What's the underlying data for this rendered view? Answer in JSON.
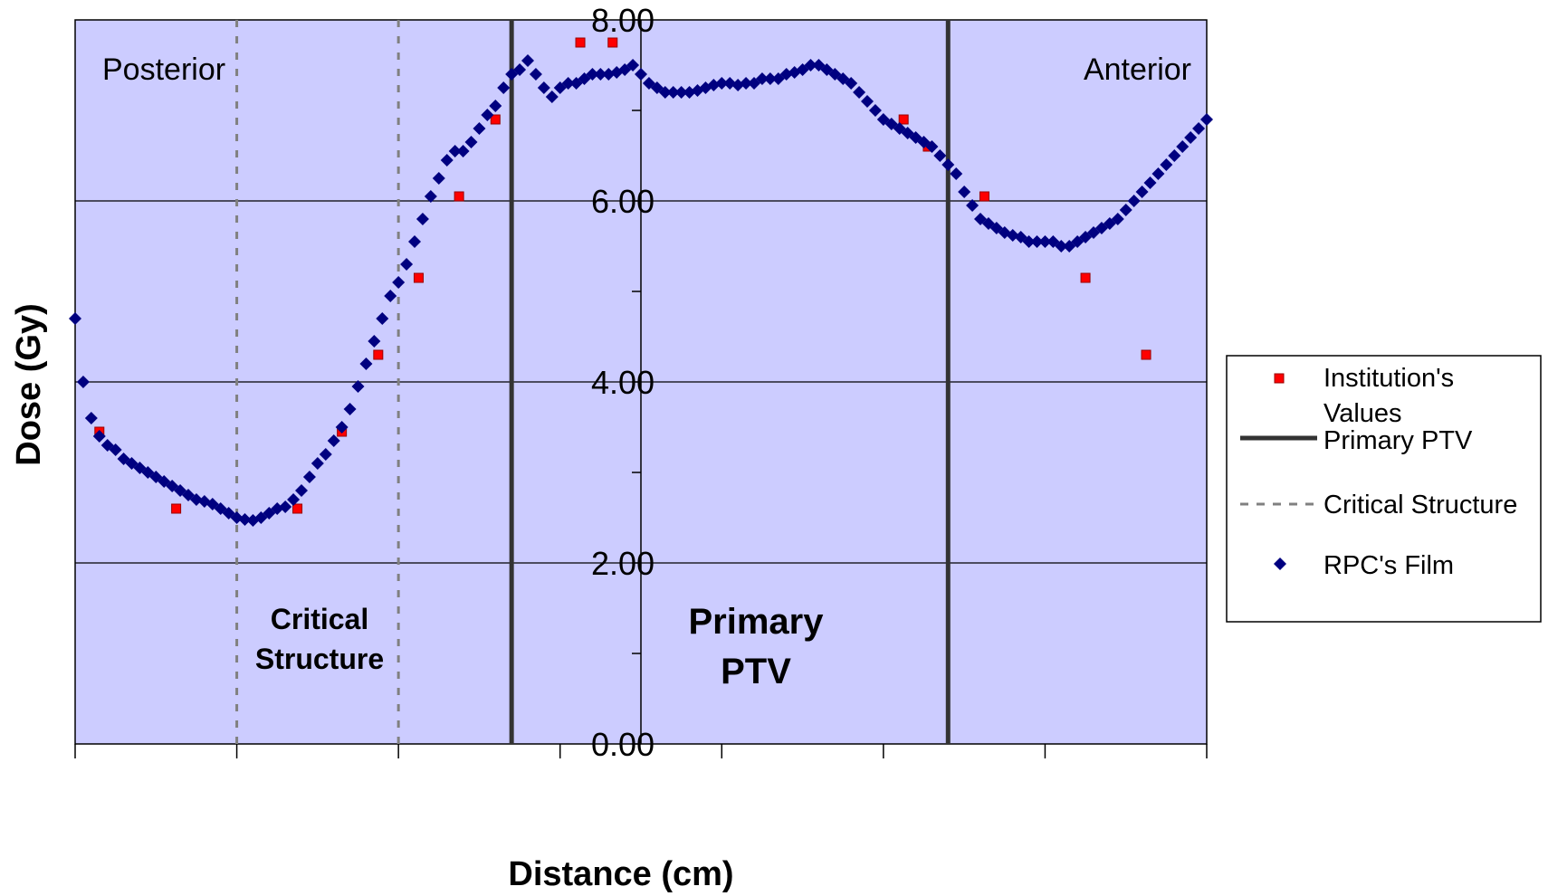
{
  "chart_data": {
    "type": "scatter",
    "title": "",
    "xlabel": "Distance (cm)",
    "ylabel": "Dose (Gy)",
    "ylim": [
      0,
      8
    ],
    "xlim": [
      0,
      14
    ],
    "y_ticks": [
      "0.00",
      "2.00",
      "4.00",
      "6.00",
      "8.00"
    ],
    "grid": "horizontal major gridlines",
    "plot_background": "#CCCCFF",
    "legend_position": "right",
    "region_labels": {
      "left": "Posterior",
      "right": "Anterior"
    },
    "annotations": {
      "critical_line1": "Critical",
      "critical_line2": "Structure",
      "ptv_line1": "Primary",
      "ptv_line2": "PTV"
    },
    "vertical_lines": [
      {
        "series": "Critical Structure",
        "x": [
          2.0,
          4.0
        ],
        "style": "dashed",
        "color": "#808080"
      },
      {
        "series": "Primary PTV",
        "x": [
          5.4,
          10.8
        ],
        "style": "solid",
        "color": "#333333"
      }
    ],
    "series": [
      {
        "name": "Institution's Values",
        "marker": "square",
        "color": "#FF0000",
        "x": [
          0.3,
          1.25,
          2.75,
          3.3,
          3.75,
          4.25,
          4.75,
          5.2,
          6.25,
          6.65,
          10.25,
          10.55,
          11.25,
          12.5,
          13.25
        ],
        "y": [
          3.45,
          2.6,
          2.6,
          3.45,
          4.3,
          5.15,
          6.05,
          6.9,
          7.75,
          7.75,
          6.9,
          6.6,
          6.05,
          5.15,
          4.3
        ]
      },
      {
        "name": "RPC's Film",
        "marker": "diamond",
        "color": "#000080",
        "x": [
          0.0,
          0.1,
          0.2,
          0.3,
          0.4,
          0.5,
          0.6,
          0.7,
          0.8,
          0.9,
          1.0,
          1.1,
          1.2,
          1.3,
          1.4,
          1.5,
          1.6,
          1.7,
          1.8,
          1.9,
          2.0,
          2.1,
          2.2,
          2.3,
          2.4,
          2.5,
          2.6,
          2.7,
          2.8,
          2.9,
          3.0,
          3.1,
          3.2,
          3.3,
          3.4,
          3.5,
          3.6,
          3.7,
          3.8,
          3.9,
          4.0,
          4.1,
          4.2,
          4.3,
          4.4,
          4.5,
          4.6,
          4.7,
          4.8,
          4.9,
          5.0,
          5.1,
          5.2,
          5.3,
          5.4,
          5.5,
          5.6,
          5.7,
          5.8,
          5.9,
          6.0,
          6.1,
          6.2,
          6.3,
          6.4,
          6.5,
          6.6,
          6.7,
          6.8,
          6.9,
          7.0,
          7.1,
          7.2,
          7.3,
          7.4,
          7.5,
          7.6,
          7.7,
          7.8,
          7.9,
          8.0,
          8.1,
          8.2,
          8.3,
          8.4,
          8.5,
          8.6,
          8.7,
          8.8,
          8.9,
          9.0,
          9.1,
          9.2,
          9.3,
          9.4,
          9.5,
          9.6,
          9.7,
          9.8,
          9.9,
          10.0,
          10.1,
          10.2,
          10.3,
          10.4,
          10.5,
          10.6,
          10.7,
          10.8,
          10.9,
          11.0,
          11.1,
          11.2,
          11.3,
          11.4,
          11.5,
          11.6,
          11.7,
          11.8,
          11.9,
          12.0,
          12.1,
          12.2,
          12.3,
          12.4,
          12.5,
          12.6,
          12.7,
          12.8,
          12.9,
          13.0,
          13.1,
          13.2,
          13.3,
          13.4,
          13.5,
          13.6,
          13.7,
          13.8,
          13.9,
          14.0
        ],
        "y": [
          4.7,
          4.0,
          3.6,
          3.4,
          3.3,
          3.25,
          3.15,
          3.1,
          3.05,
          3.0,
          2.95,
          2.9,
          2.85,
          2.8,
          2.75,
          2.7,
          2.68,
          2.65,
          2.6,
          2.55,
          2.5,
          2.48,
          2.47,
          2.5,
          2.55,
          2.6,
          2.62,
          2.7,
          2.8,
          2.95,
          3.1,
          3.2,
          3.35,
          3.5,
          3.7,
          3.95,
          4.2,
          4.45,
          4.7,
          4.95,
          5.1,
          5.3,
          5.55,
          5.8,
          6.05,
          6.25,
          6.45,
          6.55,
          6.55,
          6.65,
          6.8,
          6.95,
          7.05,
          7.25,
          7.4,
          7.45,
          7.55,
          7.4,
          7.25,
          7.15,
          7.25,
          7.3,
          7.3,
          7.35,
          7.4,
          7.4,
          7.4,
          7.42,
          7.45,
          7.5,
          7.4,
          7.3,
          7.25,
          7.2,
          7.2,
          7.2,
          7.2,
          7.22,
          7.25,
          7.28,
          7.3,
          7.3,
          7.28,
          7.3,
          7.3,
          7.35,
          7.35,
          7.35,
          7.4,
          7.42,
          7.45,
          7.5,
          7.5,
          7.45,
          7.4,
          7.35,
          7.3,
          7.2,
          7.1,
          7.0,
          6.9,
          6.85,
          6.8,
          6.75,
          6.7,
          6.65,
          6.6,
          6.5,
          6.4,
          6.3,
          6.1,
          5.95,
          5.8,
          5.75,
          5.7,
          5.65,
          5.62,
          5.6,
          5.55,
          5.55,
          5.55,
          5.55,
          5.5,
          5.5,
          5.55,
          5.6,
          5.65,
          5.7,
          5.75,
          5.8,
          5.9,
          6.0,
          6.1,
          6.2,
          6.3,
          6.4,
          6.5,
          6.6,
          6.7,
          6.8,
          6.9
        ]
      }
    ],
    "legend": [
      {
        "label_line1": "Institution's",
        "label_line2": "Values",
        "series": "Institution's Values"
      },
      {
        "label": "Primary PTV",
        "series": "Primary PTV"
      },
      {
        "label": "Critical Structure",
        "series": "Critical Structure"
      },
      {
        "label": "RPC's Film",
        "series": "RPC's Film"
      }
    ]
  }
}
